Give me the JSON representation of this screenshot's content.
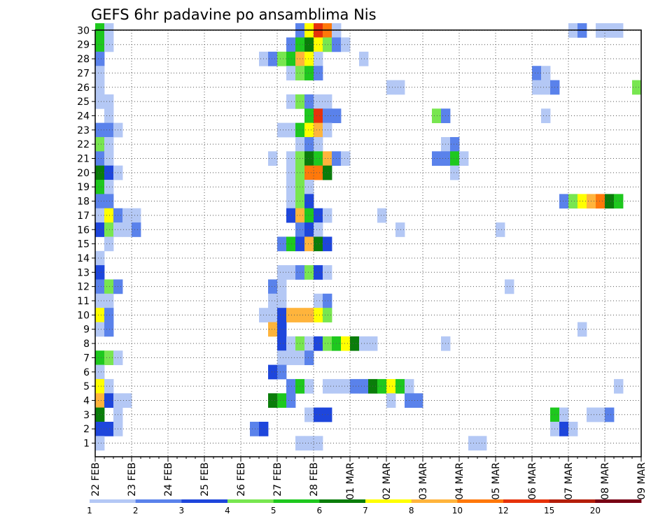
{
  "chart_data": {
    "type": "heatmap",
    "title": "GEFS 6hr padavine po ansamblima Nis",
    "x_tick_labels": [
      "22 FEB",
      "23 FEB",
      "24 FEB",
      "25 FEB",
      "26 FEB",
      "27 FEB",
      "28 FEB",
      "01 MAR",
      "02 MAR",
      "03 MAR",
      "04 MAR",
      "05 MAR",
      "06 MAR",
      "07 MAR",
      "08 MAR",
      "09 MAR"
    ],
    "y_tick_labels": [
      "1",
      "2",
      "3",
      "4",
      "5",
      "6",
      "7",
      "8",
      "9",
      "10",
      "11",
      "12",
      "13",
      "14",
      "15",
      "16",
      "17",
      "18",
      "19",
      "20",
      "21",
      "22",
      "23",
      "24",
      "25",
      "26",
      "27",
      "28",
      "29",
      "30"
    ],
    "time_steps": 60,
    "members": 30,
    "grid": "dotted",
    "colorbar": {
      "labels": [
        "1",
        "2",
        "3",
        "4",
        "5",
        "6",
        "7",
        "8",
        "10",
        "12",
        "15",
        "20"
      ],
      "colors": [
        "#b4c8f5",
        "#5a82eb",
        "#1e46dc",
        "#78e650",
        "#1ec81e",
        "#0a7d0a",
        "#ffff00",
        "#ffb43c",
        "#ff780a",
        "#e6320a",
        "#b41e0a",
        "#780014"
      ]
    },
    "cells": [
      [
        30,
        0,
        5
      ],
      [
        30,
        1,
        1
      ],
      [
        30,
        22,
        2
      ],
      [
        30,
        23,
        7
      ],
      [
        30,
        24,
        10
      ],
      [
        30,
        25,
        9
      ],
      [
        30,
        26,
        1
      ],
      [
        30,
        52,
        1
      ],
      [
        30,
        53,
        2
      ],
      [
        30,
        55,
        1
      ],
      [
        30,
        56,
        1
      ],
      [
        30,
        57,
        1
      ],
      [
        29,
        0,
        5
      ],
      [
        29,
        1,
        1
      ],
      [
        29,
        21,
        2
      ],
      [
        29,
        22,
        5
      ],
      [
        29,
        23,
        6
      ],
      [
        29,
        24,
        7
      ],
      [
        29,
        25,
        4
      ],
      [
        29,
        26,
        2
      ],
      [
        29,
        27,
        1
      ],
      [
        28,
        0,
        2
      ],
      [
        28,
        18,
        1
      ],
      [
        28,
        19,
        2
      ],
      [
        28,
        20,
        4
      ],
      [
        28,
        21,
        5
      ],
      [
        28,
        22,
        8
      ],
      [
        28,
        23,
        7
      ],
      [
        28,
        24,
        1
      ],
      [
        28,
        29,
        1
      ],
      [
        27,
        0,
        1
      ],
      [
        27,
        21,
        1
      ],
      [
        27,
        22,
        4
      ],
      [
        27,
        23,
        5
      ],
      [
        27,
        24,
        2
      ],
      [
        27,
        48,
        2
      ],
      [
        27,
        49,
        1
      ],
      [
        26,
        0,
        1
      ],
      [
        26,
        32,
        1
      ],
      [
        26,
        33,
        1
      ],
      [
        26,
        48,
        1
      ],
      [
        26,
        49,
        1
      ],
      [
        26,
        50,
        2
      ],
      [
        26,
        59,
        4
      ],
      [
        25,
        0,
        1
      ],
      [
        25,
        1,
        1
      ],
      [
        25,
        21,
        1
      ],
      [
        25,
        22,
        4
      ],
      [
        25,
        23,
        2
      ],
      [
        25,
        24,
        1
      ],
      [
        25,
        25,
        1
      ],
      [
        24,
        1,
        1
      ],
      [
        24,
        23,
        5
      ],
      [
        24,
        24,
        10
      ],
      [
        24,
        25,
        2
      ],
      [
        24,
        26,
        2
      ],
      [
        24,
        37,
        4
      ],
      [
        24,
        38,
        2
      ],
      [
        24,
        49,
        1
      ],
      [
        23,
        0,
        2
      ],
      [
        23,
        1,
        2
      ],
      [
        23,
        2,
        1
      ],
      [
        23,
        20,
        1
      ],
      [
        23,
        21,
        1
      ],
      [
        23,
        22,
        5
      ],
      [
        23,
        23,
        7
      ],
      [
        23,
        24,
        8
      ],
      [
        23,
        25,
        1
      ],
      [
        22,
        0,
        4
      ],
      [
        22,
        1,
        1
      ],
      [
        22,
        22,
        1
      ],
      [
        22,
        23,
        2
      ],
      [
        22,
        24,
        1
      ],
      [
        22,
        38,
        1
      ],
      [
        22,
        39,
        2
      ],
      [
        21,
        0,
        2
      ],
      [
        21,
        1,
        1
      ],
      [
        21,
        19,
        1
      ],
      [
        21,
        21,
        1
      ],
      [
        21,
        22,
        4
      ],
      [
        21,
        23,
        6
      ],
      [
        21,
        24,
        5
      ],
      [
        21,
        25,
        8
      ],
      [
        21,
        26,
        2
      ],
      [
        21,
        27,
        1
      ],
      [
        21,
        37,
        2
      ],
      [
        21,
        38,
        2
      ],
      [
        21,
        39,
        5
      ],
      [
        21,
        40,
        1
      ],
      [
        20,
        0,
        6
      ],
      [
        20,
        1,
        3
      ],
      [
        20,
        2,
        1
      ],
      [
        20,
        21,
        1
      ],
      [
        20,
        22,
        4
      ],
      [
        20,
        23,
        9
      ],
      [
        20,
        24,
        9
      ],
      [
        20,
        25,
        6
      ],
      [
        20,
        39,
        1
      ],
      [
        19,
        0,
        5
      ],
      [
        19,
        1,
        1
      ],
      [
        19,
        21,
        1
      ],
      [
        19,
        22,
        4
      ],
      [
        19,
        23,
        1
      ],
      [
        18,
        0,
        2
      ],
      [
        18,
        1,
        2
      ],
      [
        18,
        21,
        1
      ],
      [
        18,
        22,
        4
      ],
      [
        18,
        23,
        3
      ],
      [
        18,
        51,
        2
      ],
      [
        18,
        52,
        4
      ],
      [
        18,
        53,
        7
      ],
      [
        18,
        54,
        8
      ],
      [
        18,
        55,
        9
      ],
      [
        18,
        56,
        6
      ],
      [
        18,
        57,
        5
      ],
      [
        17,
        0,
        1
      ],
      [
        17,
        1,
        7
      ],
      [
        17,
        2,
        2
      ],
      [
        17,
        3,
        1
      ],
      [
        17,
        4,
        1
      ],
      [
        17,
        21,
        3
      ],
      [
        17,
        22,
        8
      ],
      [
        17,
        23,
        5
      ],
      [
        17,
        24,
        3
      ],
      [
        17,
        25,
        1
      ],
      [
        17,
        31,
        1
      ],
      [
        16,
        0,
        3
      ],
      [
        16,
        1,
        4
      ],
      [
        16,
        2,
        1
      ],
      [
        16,
        3,
        1
      ],
      [
        16,
        4,
        2
      ],
      [
        16,
        22,
        2
      ],
      [
        16,
        23,
        3
      ],
      [
        16,
        24,
        1
      ],
      [
        16,
        33,
        1
      ],
      [
        16,
        44,
        1
      ],
      [
        15,
        1,
        1
      ],
      [
        15,
        20,
        2
      ],
      [
        15,
        21,
        5
      ],
      [
        15,
        22,
        3
      ],
      [
        15,
        23,
        8
      ],
      [
        15,
        24,
        6
      ],
      [
        15,
        25,
        3
      ],
      [
        14,
        0,
        1
      ],
      [
        13,
        0,
        3
      ],
      [
        13,
        20,
        1
      ],
      [
        13,
        21,
        1
      ],
      [
        13,
        22,
        2
      ],
      [
        13,
        23,
        4
      ],
      [
        13,
        24,
        3
      ],
      [
        13,
        25,
        1
      ],
      [
        12,
        0,
        2
      ],
      [
        12,
        1,
        4
      ],
      [
        12,
        2,
        2
      ],
      [
        12,
        19,
        2
      ],
      [
        12,
        20,
        1
      ],
      [
        12,
        45,
        1
      ],
      [
        11,
        0,
        1
      ],
      [
        11,
        1,
        1
      ],
      [
        11,
        19,
        1
      ],
      [
        11,
        20,
        1
      ],
      [
        11,
        24,
        1
      ],
      [
        11,
        25,
        2
      ],
      [
        10,
        0,
        7
      ],
      [
        10,
        1,
        2
      ],
      [
        10,
        18,
        1
      ],
      [
        10,
        19,
        1
      ],
      [
        10,
        20,
        3
      ],
      [
        10,
        21,
        8
      ],
      [
        10,
        22,
        8
      ],
      [
        10,
        23,
        8
      ],
      [
        10,
        24,
        7
      ],
      [
        10,
        25,
        4
      ],
      [
        9,
        0,
        1
      ],
      [
        9,
        1,
        2
      ],
      [
        9,
        19,
        8
      ],
      [
        9,
        20,
        3
      ],
      [
        9,
        53,
        1
      ],
      [
        8,
        20,
        3
      ],
      [
        8,
        21,
        1
      ],
      [
        8,
        22,
        4
      ],
      [
        8,
        23,
        1
      ],
      [
        8,
        24,
        3
      ],
      [
        8,
        25,
        4
      ],
      [
        8,
        26,
        5
      ],
      [
        8,
        27,
        7
      ],
      [
        8,
        28,
        6
      ],
      [
        8,
        29,
        1
      ],
      [
        8,
        30,
        1
      ],
      [
        8,
        38,
        1
      ],
      [
        7,
        0,
        5
      ],
      [
        7,
        1,
        4
      ],
      [
        7,
        2,
        1
      ],
      [
        7,
        20,
        1
      ],
      [
        7,
        21,
        1
      ],
      [
        7,
        22,
        1
      ],
      [
        7,
        23,
        2
      ],
      [
        6,
        0,
        1
      ],
      [
        6,
        19,
        3
      ],
      [
        6,
        20,
        2
      ],
      [
        5,
        0,
        7
      ],
      [
        5,
        1,
        1
      ],
      [
        5,
        21,
        2
      ],
      [
        5,
        22,
        5
      ],
      [
        5,
        23,
        1
      ],
      [
        5,
        25,
        1
      ],
      [
        5,
        26,
        1
      ],
      [
        5,
        27,
        1
      ],
      [
        5,
        28,
        2
      ],
      [
        5,
        29,
        2
      ],
      [
        5,
        30,
        6
      ],
      [
        5,
        31,
        5
      ],
      [
        5,
        32,
        7
      ],
      [
        5,
        33,
        5
      ],
      [
        5,
        34,
        1
      ],
      [
        5,
        57,
        1
      ],
      [
        4,
        0,
        8
      ],
      [
        4,
        1,
        3
      ],
      [
        4,
        2,
        1
      ],
      [
        4,
        3,
        1
      ],
      [
        4,
        19,
        6
      ],
      [
        4,
        20,
        5
      ],
      [
        4,
        21,
        2
      ],
      [
        4,
        32,
        1
      ],
      [
        4,
        34,
        2
      ],
      [
        4,
        35,
        2
      ],
      [
        3,
        0,
        6
      ],
      [
        3,
        2,
        1
      ],
      [
        3,
        23,
        1
      ],
      [
        3,
        24,
        3
      ],
      [
        3,
        25,
        3
      ],
      [
        3,
        50,
        5
      ],
      [
        3,
        51,
        1
      ],
      [
        3,
        54,
        1
      ],
      [
        3,
        55,
        1
      ],
      [
        3,
        56,
        2
      ],
      [
        2,
        0,
        3
      ],
      [
        2,
        1,
        3
      ],
      [
        2,
        2,
        1
      ],
      [
        2,
        17,
        2
      ],
      [
        2,
        18,
        3
      ],
      [
        2,
        50,
        1
      ],
      [
        2,
        51,
        3
      ],
      [
        2,
        52,
        1
      ],
      [
        1,
        0,
        1
      ],
      [
        1,
        22,
        1
      ],
      [
        1,
        23,
        1
      ],
      [
        1,
        24,
        1
      ],
      [
        1,
        41,
        1
      ],
      [
        1,
        42,
        1
      ]
    ]
  }
}
